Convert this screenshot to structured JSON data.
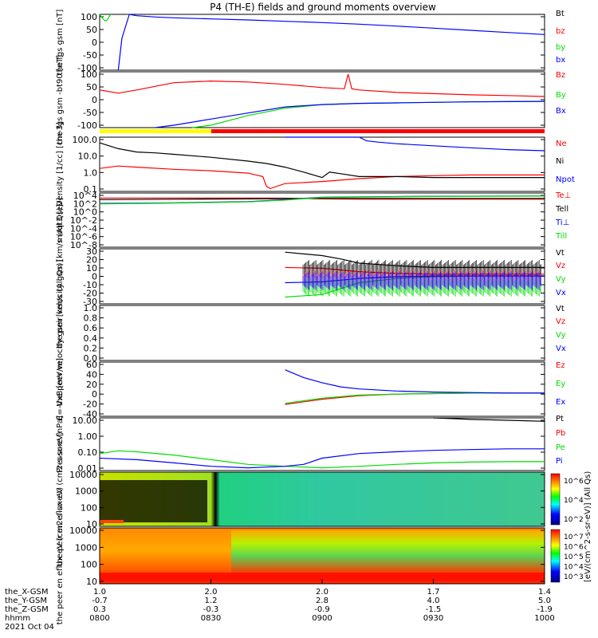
{
  "title": "P4 (TH-E) fields and ground moments overview",
  "colors": {
    "black": "#000000",
    "red": "#ff0000",
    "green": "#00dd00",
    "blue": "#0000ff",
    "yellow": "#ffff00"
  },
  "chart_data": [
    {
      "type": "line",
      "ylabel": "the fgs gsm [nT]",
      "yticks": [
        100,
        50,
        0,
        -50,
        -100
      ],
      "ylim": [
        -100,
        110
      ],
      "series": [
        {
          "name": "Bt",
          "color": "#000000",
          "x": [],
          "values": []
        },
        {
          "name": "bz",
          "color": "#ff0000",
          "x": [],
          "values": []
        },
        {
          "name": "by",
          "color": "#00dd00",
          "x": [
            0,
            0.5,
            1,
            1.5,
            2,
            2.5,
            3
          ],
          "values": [
            110,
            100,
            92,
            85,
            88,
            100,
            110
          ]
        },
        {
          "name": "bx",
          "color": "#0000ff",
          "x": [
            5,
            6,
            8,
            10,
            15,
            20,
            30,
            40,
            50,
            60,
            70,
            80,
            90,
            100,
            110,
            120
          ],
          "values": [
            -100,
            20,
            110,
            105,
            100,
            97,
            93,
            89,
            84,
            79,
            73,
            66,
            58,
            50,
            42,
            34
          ]
        }
      ]
    },
    {
      "type": "line",
      "ylabel": "the fgs gsm -bt90 [nT]",
      "yticks": [
        100,
        50,
        0,
        -50,
        -100
      ],
      "ylim": [
        -120,
        110
      ],
      "series": [
        {
          "name": "Bz",
          "color": "#ff0000",
          "x": [
            0,
            5,
            10,
            20,
            30,
            40,
            50,
            60,
            66,
            67,
            68,
            70,
            80,
            90,
            100,
            110,
            120
          ],
          "values": [
            35,
            22,
            35,
            65,
            72,
            68,
            58,
            45,
            40,
            100,
            40,
            35,
            25,
            20,
            15,
            12,
            8
          ]
        },
        {
          "name": "By",
          "color": "#00dd00",
          "x": [
            25,
            30,
            35,
            40,
            50,
            60,
            70,
            80,
            90,
            100,
            110,
            120
          ],
          "values": [
            -120,
            -110,
            -90,
            -70,
            -40,
            -25,
            -20,
            -18,
            -16,
            -14,
            -13,
            -12
          ]
        },
        {
          "name": "Bx",
          "color": "#0000ff",
          "x": [
            15,
            20,
            30,
            40,
            50,
            60,
            70,
            80,
            90,
            100,
            110,
            120
          ],
          "values": [
            -120,
            -110,
            -85,
            -60,
            -35,
            -25,
            -20,
            -18,
            -16,
            -14,
            -13,
            -12
          ]
        }
      ]
    },
    {
      "type": "line",
      "ylabel": "Density [1/cc] [cm-3]",
      "yticks": [
        "100.0",
        "10.0",
        "1.0",
        "0.1"
      ],
      "ylim": [
        0.1,
        200
      ],
      "log": true,
      "series": [
        {
          "name": "Ne",
          "color": "#ff0000",
          "x": [
            0,
            5,
            10,
            20,
            30,
            40,
            44,
            45,
            46,
            50,
            60,
            70,
            80,
            90,
            100,
            110,
            120
          ],
          "values": [
            2.5,
            3.5,
            3,
            2.2,
            1.8,
            1.3,
            0.8,
            0.2,
            0.15,
            0.3,
            0.4,
            0.6,
            0.8,
            0.9,
            1,
            1,
            1
          ]
        },
        {
          "name": "Ni",
          "color": "#000000",
          "x": [
            0,
            5,
            10,
            15,
            20,
            30,
            40,
            45,
            50,
            55,
            60,
            62,
            65,
            70,
            80,
            90,
            100,
            110,
            120
          ],
          "values": [
            90,
            40,
            25,
            22,
            18,
            12,
            7,
            5,
            3,
            1.5,
            0.7,
            1.5,
            1.2,
            0.8,
            0.8,
            0.7,
            0.7,
            0.7,
            0.7
          ]
        },
        {
          "name": "Npot",
          "color": "#0000ff",
          "x": [
            50,
            60,
            70,
            72,
            75,
            80,
            90,
            100,
            110,
            120
          ],
          "values": [
            200,
            200,
            200,
            120,
            100,
            80,
            60,
            45,
            35,
            30
          ]
        }
      ]
    },
    {
      "type": "line",
      "ylabel": "moqt3 [eV]",
      "yticks": [
        "10^4",
        "10^2",
        "10^0",
        "10^-2",
        "10^-4",
        "10^-6",
        "10^-8"
      ],
      "ylim": [
        1e-09,
        100000.0
      ],
      "log": true,
      "series": [
        {
          "name": "Te⊥",
          "color": "#ff0000",
          "x": [
            0,
            20,
            40,
            50,
            60,
            70,
            80,
            90,
            100,
            110,
            120
          ],
          "values": [
            5000,
            5000,
            5000,
            4500,
            3000,
            2500,
            2500,
            2500,
            2500,
            2500,
            2500
          ]
        },
        {
          "name": "Tell",
          "color": "#000000",
          "x": [
            0,
            20,
            40,
            50,
            60,
            70,
            80,
            90,
            100,
            110,
            120
          ],
          "values": [
            2000,
            2500,
            3000,
            3500,
            4000,
            4000,
            4000,
            4000,
            4000,
            4000,
            4000
          ]
        },
        {
          "name": "Ti⊥",
          "color": "#0000ff",
          "x": [
            0,
            20,
            40,
            50,
            60,
            70,
            80,
            90,
            100,
            110,
            120
          ],
          "values": [
            200,
            300,
            600,
            2000,
            8000,
            10000,
            12000,
            14000,
            15000,
            16000,
            17000
          ]
        },
        {
          "name": "Till",
          "color": "#00dd00",
          "x": [
            0,
            20,
            40,
            50,
            60,
            70,
            80,
            90,
            100,
            110,
            120
          ],
          "values": [
            150,
            250,
            500,
            1500,
            7000,
            9000,
            11000,
            13000,
            14000,
            15000,
            16000
          ]
        }
      ]
    },
    {
      "type": "line",
      "ylabel": "the peir velocity gsm [km/s (All Qs)]",
      "yticks": [
        30,
        20,
        10,
        0,
        -10,
        -20,
        -30
      ],
      "ylim": [
        -33,
        32
      ],
      "series": [
        {
          "name": "Vt",
          "color": "#000000",
          "x": [
            50,
            60,
            65,
            70,
            80,
            90,
            100,
            110,
            120
          ],
          "values": [
            28,
            24,
            20,
            15,
            12,
            10,
            10,
            10,
            10
          ]
        },
        {
          "name": "Vz",
          "color": "#ff0000",
          "x": [
            50,
            60,
            65,
            70,
            80,
            90,
            100,
            110,
            120
          ],
          "values": [
            10,
            9,
            7,
            5,
            3,
            2,
            2,
            2,
            2
          ]
        },
        {
          "name": "Vy",
          "color": "#00dd00",
          "x": [
            50,
            60,
            65,
            70,
            80,
            90,
            100,
            110,
            120
          ],
          "values": [
            -25,
            -22,
            -15,
            -8,
            -3,
            -1,
            0,
            0,
            0
          ]
        },
        {
          "name": "Vx",
          "color": "#0000ff",
          "x": [
            50,
            60,
            65,
            70,
            80,
            90,
            100,
            110,
            120
          ],
          "values": [
            -8,
            -7,
            -5,
            -3,
            -1,
            0,
            0,
            0,
            0
          ]
        }
      ]
    },
    {
      "type": "line",
      "ylabel": "the peer velocity gsm [km/s (All Qs)]",
      "yticks": [
        "1.0",
        "0.8",
        "0.6",
        "0.4",
        "0.2",
        "0.0"
      ],
      "ylim": [
        0,
        1
      ],
      "series": [
        {
          "name": "Vt",
          "color": "#000000",
          "x": [],
          "values": []
        },
        {
          "name": "Vz",
          "color": "#ff0000",
          "x": [],
          "values": []
        },
        {
          "name": "Vy",
          "color": "#00dd00",
          "x": [],
          "values": []
        },
        {
          "name": "Vx",
          "color": "#0000ff",
          "x": [],
          "values": []
        }
      ]
    },
    {
      "type": "line",
      "ylabel": "E=-VxB [mV/m]",
      "yticks": [
        60,
        40,
        20,
        0,
        -20,
        -40
      ],
      "ylim": [
        -45,
        60
      ],
      "series": [
        {
          "name": "Ez",
          "color": "#ff0000",
          "x": [
            50,
            60,
            70,
            80,
            90,
            100,
            110,
            120
          ],
          "values": [
            -22,
            -12,
            -5,
            -2,
            -1,
            0,
            0,
            0
          ]
        },
        {
          "name": "Ey",
          "color": "#00dd00",
          "x": [
            50,
            60,
            70,
            80,
            90,
            100,
            110,
            120
          ],
          "values": [
            -20,
            -10,
            -4,
            -2,
            -1,
            0,
            0,
            0
          ]
        },
        {
          "name": "Ex",
          "color": "#0000ff",
          "x": [
            50,
            55,
            60,
            65,
            70,
            80,
            90,
            100,
            110,
            120
          ],
          "values": [
            45,
            30,
            20,
            12,
            8,
            4,
            2,
            1,
            0,
            0
          ]
        }
      ]
    },
    {
      "type": "line",
      "ylabel": "Pressure [nPa]",
      "yticks": [
        "10.00",
        "1.00",
        "0.10",
        "0.01"
      ],
      "ylim": [
        0.008,
        20
      ],
      "log": true,
      "series": [
        {
          "name": "Pt",
          "color": "#000000",
          "x": [
            90,
            95,
            100,
            105,
            110,
            115,
            120
          ],
          "values": [
            20,
            18,
            16,
            15,
            14,
            13,
            12
          ]
        },
        {
          "name": "Pb",
          "color": "#ff0000",
          "x": [],
          "values": []
        },
        {
          "name": "Pe",
          "color": "#00dd00",
          "x": [
            0,
            5,
            10,
            20,
            30,
            40,
            50,
            60,
            70,
            80,
            90,
            100,
            110,
            120
          ],
          "values": [
            0.1,
            0.15,
            0.13,
            0.08,
            0.04,
            0.02,
            0.015,
            0.012,
            0.015,
            0.02,
            0.025,
            0.028,
            0.03,
            0.03
          ]
        },
        {
          "name": "Pi",
          "color": "#0000ff",
          "x": [
            0,
            10,
            20,
            30,
            40,
            50,
            55,
            60,
            70,
            80,
            90,
            100,
            110,
            120
          ],
          "values": [
            0.05,
            0.04,
            0.025,
            0.015,
            0.012,
            0.015,
            0.02,
            0.05,
            0.1,
            0.13,
            0.16,
            0.18,
            0.2,
            0.2
          ]
        }
      ]
    },
    {
      "type": "heatmap",
      "ylabel": "the peir en eflux eV (cm2-s-sr-eV)",
      "yticks": [
        "10000",
        "1000",
        "100",
        "10"
      ],
      "colorbar_ticks": [
        "10^6",
        "10^4",
        "10^2"
      ],
      "colorbar_label": "[eV/(cm^2-s-sr-eV)] (All Qs)"
    },
    {
      "type": "heatmap",
      "ylabel": "the peer en eflux eV (cm2-s-sr-eV)",
      "yticks": [
        "10000",
        "1000",
        "100",
        "10"
      ],
      "colorbar_ticks": [
        "10^7",
        "10^6",
        "10^5",
        "10^4",
        "10^3"
      ],
      "colorbar_label": "[eV/(cm^2-s-sr-eV)]"
    }
  ],
  "xaxis": {
    "row_labels": [
      "the_X-GSM",
      "the_Y-GSM",
      "the_Z-GSM",
      "hhmm",
      "2021 Oct 04"
    ],
    "ticks": [
      {
        "x": 0,
        "vals": [
          "1.0",
          "-0.7",
          "0.3",
          "0800"
        ]
      },
      {
        "x": 30,
        "vals": [
          "2.0",
          "1.2",
          "-0.3",
          "0830"
        ]
      },
      {
        "x": 60,
        "vals": [
          "2.0",
          "2.8",
          "-0.9",
          "0900"
        ]
      },
      {
        "x": 90,
        "vals": [
          "1.7",
          "4.0",
          "-1.5",
          "0930"
        ]
      },
      {
        "x": 120,
        "vals": [
          "1.4",
          "5.0",
          "-1.9",
          "1000"
        ]
      }
    ],
    "xlim": [
      0,
      120
    ]
  }
}
